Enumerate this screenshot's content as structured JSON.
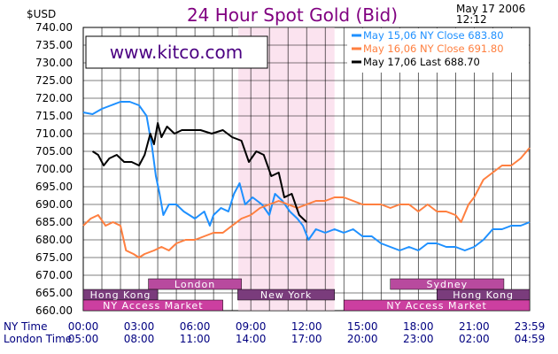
{
  "unit_label": "$USD",
  "timestamp_date": "May  17  2006",
  "timestamp_time": "12:12",
  "watermark": "www.kitco.com",
  "row_labels": {
    "ny": "NY Time",
    "london": "London Time"
  },
  "chart_data": {
    "type": "line",
    "title": "24 Hour Spot Gold (Bid)",
    "ylim": [
      660,
      740
    ],
    "y_ticks": [
      "740.00",
      "735.00",
      "730.00",
      "725.00",
      "720.00",
      "715.00",
      "710.00",
      "705.00",
      "700.00",
      "695.00",
      "690.00",
      "685.00",
      "680.00",
      "675.00",
      "670.00",
      "665.00",
      "660.00"
    ],
    "x_hours_ny": [
      0,
      3,
      6,
      9,
      12,
      15,
      18,
      21,
      23.983
    ],
    "x_ticks_ny": [
      "00:00",
      "03:00",
      "06:00",
      "09:00",
      "12:00",
      "15:00",
      "18:00",
      "21:00",
      "23:59"
    ],
    "x_ticks_london": [
      "05:00",
      "08:00",
      "11:00",
      "14:00",
      "17:00",
      "20:00",
      "23:00",
      "02:00",
      "04:59"
    ],
    "grid": true,
    "highlight_band_hours": [
      8.33,
      13.5
    ],
    "legend_position": "top-right",
    "series": [
      {
        "name": "May  15,06  NY  Close  683.80",
        "color": "#1e90ff",
        "points": [
          [
            0,
            716
          ],
          [
            0.5,
            715.5
          ],
          [
            1,
            717
          ],
          [
            1.5,
            718
          ],
          [
            2,
            719
          ],
          [
            2.5,
            719
          ],
          [
            3,
            718
          ],
          [
            3.4,
            715
          ],
          [
            3.7,
            706
          ],
          [
            3.9,
            698
          ],
          [
            4.1,
            693
          ],
          [
            4.3,
            687
          ],
          [
            4.6,
            690
          ],
          [
            5,
            690
          ],
          [
            5.4,
            688
          ],
          [
            6,
            686
          ],
          [
            6.5,
            688
          ],
          [
            6.8,
            684
          ],
          [
            7,
            687
          ],
          [
            7.4,
            689
          ],
          [
            7.8,
            688
          ],
          [
            8.1,
            693
          ],
          [
            8.4,
            696
          ],
          [
            8.7,
            690
          ],
          [
            9.1,
            692
          ],
          [
            9.6,
            690
          ],
          [
            10,
            687
          ],
          [
            10.3,
            693
          ],
          [
            10.7,
            691
          ],
          [
            11.1,
            688
          ],
          [
            11.5,
            686
          ],
          [
            11.8,
            684
          ],
          [
            12.1,
            680
          ],
          [
            12.5,
            683
          ],
          [
            13,
            682
          ],
          [
            13.5,
            683
          ],
          [
            14,
            682
          ],
          [
            14.5,
            683
          ],
          [
            15,
            681
          ],
          [
            15.5,
            681
          ],
          [
            16,
            679
          ],
          [
            16.5,
            678
          ],
          [
            17,
            677
          ],
          [
            17.5,
            678
          ],
          [
            18,
            677
          ],
          [
            18.5,
            679
          ],
          [
            19,
            679
          ],
          [
            19.5,
            678
          ],
          [
            20,
            678
          ],
          [
            20.5,
            677
          ],
          [
            21,
            678
          ],
          [
            21.5,
            680
          ],
          [
            22,
            683
          ],
          [
            22.5,
            683
          ],
          [
            23,
            684
          ],
          [
            23.5,
            684
          ],
          [
            23.983,
            685
          ]
        ]
      },
      {
        "name": "May  16,06  NY  Close  691.80",
        "color": "#ff7f3f",
        "points": [
          [
            0,
            684
          ],
          [
            0.4,
            686
          ],
          [
            0.8,
            687
          ],
          [
            1.2,
            684
          ],
          [
            1.6,
            685
          ],
          [
            2,
            684
          ],
          [
            2.3,
            677
          ],
          [
            2.7,
            676
          ],
          [
            3,
            675
          ],
          [
            3.3,
            676
          ],
          [
            3.8,
            677
          ],
          [
            4.2,
            678
          ],
          [
            4.6,
            677
          ],
          [
            5,
            679
          ],
          [
            5.5,
            680
          ],
          [
            6,
            680
          ],
          [
            6.5,
            681
          ],
          [
            7,
            682
          ],
          [
            7.5,
            682
          ],
          [
            8,
            684
          ],
          [
            8.5,
            686
          ],
          [
            9,
            687
          ],
          [
            9.5,
            689
          ],
          [
            10,
            690
          ],
          [
            10.5,
            691
          ],
          [
            11,
            690
          ],
          [
            11.5,
            689
          ],
          [
            12,
            690
          ],
          [
            12.5,
            691
          ],
          [
            13,
            691
          ],
          [
            13.5,
            692
          ],
          [
            14,
            692
          ],
          [
            14.5,
            691
          ],
          [
            15,
            690
          ],
          [
            15.5,
            690
          ],
          [
            16,
            690
          ],
          [
            16.5,
            689
          ],
          [
            17,
            690
          ],
          [
            17.5,
            690
          ],
          [
            18,
            688
          ],
          [
            18.5,
            690
          ],
          [
            19,
            688
          ],
          [
            19.5,
            688
          ],
          [
            20,
            687
          ],
          [
            20.3,
            685
          ],
          [
            20.7,
            690
          ],
          [
            21,
            692
          ],
          [
            21.5,
            697
          ],
          [
            22,
            699
          ],
          [
            22.5,
            701
          ],
          [
            23,
            701
          ],
          [
            23.5,
            703
          ],
          [
            23.983,
            706
          ]
        ]
      },
      {
        "name": "May  17,06  Last  688.70",
        "color": "#000000",
        "points": [
          [
            0.5,
            705
          ],
          [
            0.8,
            704
          ],
          [
            1.1,
            701
          ],
          [
            1.4,
            703
          ],
          [
            1.8,
            704
          ],
          [
            2.2,
            702
          ],
          [
            2.6,
            702
          ],
          [
            3,
            701
          ],
          [
            3.3,
            704
          ],
          [
            3.6,
            710
          ],
          [
            3.8,
            707
          ],
          [
            4,
            713
          ],
          [
            4.2,
            709
          ],
          [
            4.5,
            712
          ],
          [
            4.9,
            710
          ],
          [
            5.3,
            711
          ],
          [
            5.8,
            711
          ],
          [
            6.3,
            711
          ],
          [
            6.9,
            710
          ],
          [
            7.5,
            711
          ],
          [
            8,
            709
          ],
          [
            8.5,
            708
          ],
          [
            8.9,
            702
          ],
          [
            9.3,
            705
          ],
          [
            9.7,
            704
          ],
          [
            10.1,
            698
          ],
          [
            10.5,
            699
          ],
          [
            10.8,
            692
          ],
          [
            11.2,
            693
          ],
          [
            11.6,
            687
          ],
          [
            12,
            685
          ]
        ]
      }
    ],
    "bands": [
      {
        "label": "London",
        "start": 3.5,
        "end": 8.5,
        "row": 0,
        "color": "#b84a9e"
      },
      {
        "label": "Sydney",
        "start": 16.5,
        "end": 22.6,
        "row": 0,
        "color": "#b84a9e"
      },
      {
        "label": "Hong Kong",
        "start": 0,
        "end": 4.0,
        "row": 1,
        "color": "#7a3c7c"
      },
      {
        "label": "New York",
        "start": 8.3,
        "end": 13.5,
        "row": 1,
        "color": "#7a3c7c"
      },
      {
        "label": "Hong Kong",
        "start": 19.0,
        "end": 23.983,
        "row": 1,
        "color": "#7a3c7c"
      },
      {
        "label": "NY Access Market",
        "start": 0,
        "end": 7.5,
        "row": 2,
        "color": "#cc3fa0"
      },
      {
        "label": "NY Access Market",
        "start": 14.0,
        "end": 23.983,
        "row": 2,
        "color": "#cc3fa0"
      }
    ]
  }
}
